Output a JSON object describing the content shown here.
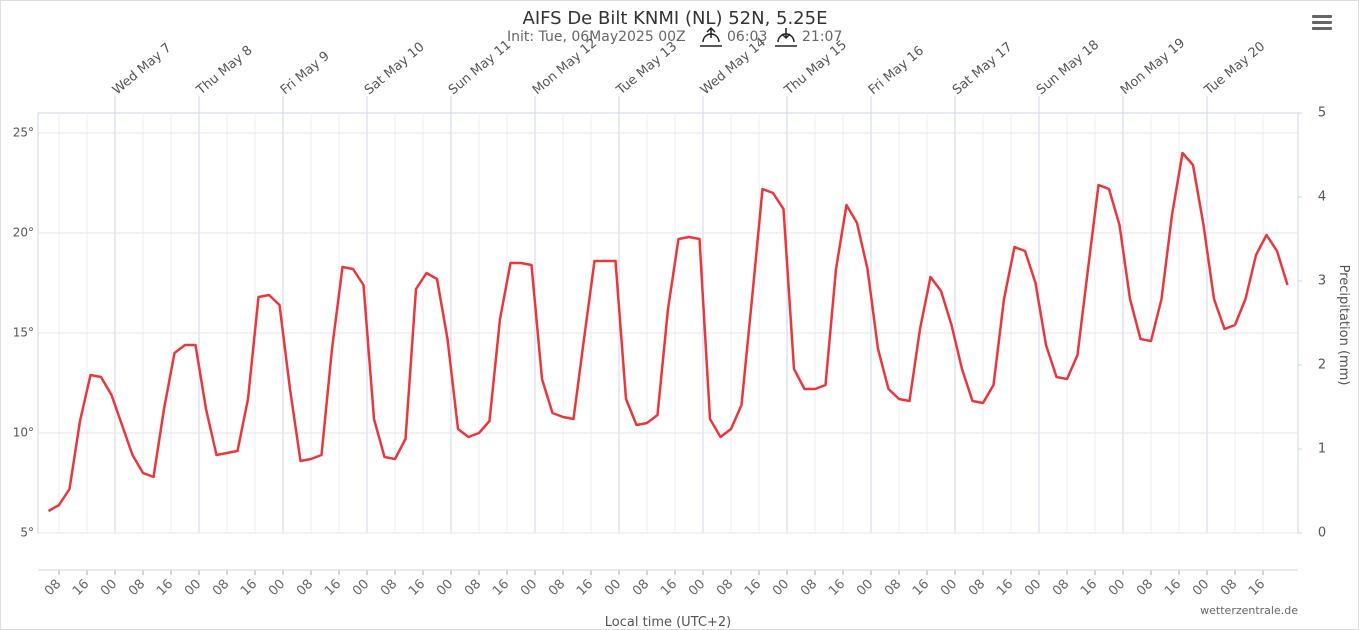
{
  "chart_data": {
    "type": "line",
    "title": "AIFS De Bilt KNMI (NL) 52N, 5.25E",
    "subtitle": "Init: Tue, 06May2025 00Z",
    "sunrise": "06:03",
    "sunset": "21:07",
    "y2_label": "Precipitation (mm)",
    "x_label": "Local time (UTC+2)",
    "credit": "wetterzentrale.de",
    "xlim": [
      "2025-05-06 02:00",
      "2025-05-21 02:00"
    ],
    "xticks": [
      {
        "value": "2025-05-07 00:00",
        "label": "Wed May 7"
      },
      {
        "value": "2025-05-08 00:00",
        "label": "Thu May 8"
      },
      {
        "value": "2025-05-09 00:00",
        "label": "Fri May 9"
      },
      {
        "value": "2025-05-10 00:00",
        "label": "Sat May 10"
      },
      {
        "value": "2025-05-11 00:00",
        "label": "Sun May 11"
      },
      {
        "value": "2025-05-12 00:00",
        "label": "Mon May 12"
      },
      {
        "value": "2025-05-13 00:00",
        "label": "Tue May 13"
      },
      {
        "value": "2025-05-14 00:00",
        "label": "Wed May 14"
      },
      {
        "value": "2025-05-15 00:00",
        "label": "Thu May 15"
      },
      {
        "value": "2025-05-16 00:00",
        "label": "Fri May 16"
      },
      {
        "value": "2025-05-17 00:00",
        "label": "Sat May 17"
      },
      {
        "value": "2025-05-18 00:00",
        "label": "Sun May 18"
      },
      {
        "value": "2025-05-19 00:00",
        "label": "Mon May 19"
      },
      {
        "value": "2025-05-20 00:00",
        "label": "Tue May 20"
      }
    ],
    "hour_ticks": [
      {
        "value": "2025-05-06 08:00",
        "label": "08"
      },
      {
        "value": "2025-05-06 16:00",
        "label": "16"
      },
      {
        "value": "2025-05-07 00:00",
        "label": "00"
      },
      {
        "value": "2025-05-07 08:00",
        "label": "08"
      },
      {
        "value": "2025-05-07 16:00",
        "label": "16"
      },
      {
        "value": "2025-05-08 00:00",
        "label": "00"
      },
      {
        "value": "2025-05-08 08:00",
        "label": "08"
      },
      {
        "value": "2025-05-08 16:00",
        "label": "16"
      },
      {
        "value": "2025-05-09 00:00",
        "label": "00"
      },
      {
        "value": "2025-05-09 08:00",
        "label": "08"
      },
      {
        "value": "2025-05-09 16:00",
        "label": "16"
      },
      {
        "value": "2025-05-10 00:00",
        "label": "00"
      },
      {
        "value": "2025-05-10 08:00",
        "label": "08"
      },
      {
        "value": "2025-05-10 16:00",
        "label": "16"
      },
      {
        "value": "2025-05-11 00:00",
        "label": "00"
      },
      {
        "value": "2025-05-11 08:00",
        "label": "08"
      },
      {
        "value": "2025-05-11 16:00",
        "label": "16"
      },
      {
        "value": "2025-05-12 00:00",
        "label": "00"
      },
      {
        "value": "2025-05-12 08:00",
        "label": "08"
      },
      {
        "value": "2025-05-12 16:00",
        "label": "16"
      },
      {
        "value": "2025-05-13 00:00",
        "label": "00"
      },
      {
        "value": "2025-05-13 08:00",
        "label": "08"
      },
      {
        "value": "2025-05-13 16:00",
        "label": "16"
      },
      {
        "value": "2025-05-14 00:00",
        "label": "00"
      },
      {
        "value": "2025-05-14 08:00",
        "label": "08"
      },
      {
        "value": "2025-05-14 16:00",
        "label": "16"
      },
      {
        "value": "2025-05-15 00:00",
        "label": "00"
      },
      {
        "value": "2025-05-15 08:00",
        "label": "08"
      },
      {
        "value": "2025-05-15 16:00",
        "label": "16"
      },
      {
        "value": "2025-05-16 00:00",
        "label": "00"
      },
      {
        "value": "2025-05-16 08:00",
        "label": "08"
      },
      {
        "value": "2025-05-16 16:00",
        "label": "16"
      },
      {
        "value": "2025-05-17 00:00",
        "label": "00"
      },
      {
        "value": "2025-05-17 08:00",
        "label": "08"
      },
      {
        "value": "2025-05-17 16:00",
        "label": "16"
      },
      {
        "value": "2025-05-18 00:00",
        "label": "00"
      },
      {
        "value": "2025-05-18 08:00",
        "label": "08"
      },
      {
        "value": "2025-05-18 16:00",
        "label": "16"
      },
      {
        "value": "2025-05-19 00:00",
        "label": "00"
      },
      {
        "value": "2025-05-19 08:00",
        "label": "08"
      },
      {
        "value": "2025-05-19 16:00",
        "label": "16"
      },
      {
        "value": "2025-05-20 00:00",
        "label": "00"
      },
      {
        "value": "2025-05-20 08:00",
        "label": "08"
      },
      {
        "value": "2025-05-20 16:00",
        "label": "16"
      }
    ],
    "ylim": [
      5,
      26
    ],
    "yticks": [
      {
        "value": 5,
        "label": "5°"
      },
      {
        "value": 10,
        "label": "10°"
      },
      {
        "value": 15,
        "label": "15°"
      },
      {
        "value": 20,
        "label": "20°"
      },
      {
        "value": 25,
        "label": "25°"
      }
    ],
    "y2lim": [
      0,
      5
    ],
    "y2ticks": [
      0,
      1,
      2,
      3,
      4,
      5
    ],
    "grid": true,
    "x": [
      "2025-05-06 05:00",
      "2025-05-06 08:00",
      "2025-05-06 11:00",
      "2025-05-06 14:00",
      "2025-05-06 17:00",
      "2025-05-06 20:00",
      "2025-05-06 23:00",
      "2025-05-07 02:00",
      "2025-05-07 05:00",
      "2025-05-07 08:00",
      "2025-05-07 11:00",
      "2025-05-07 14:00",
      "2025-05-07 17:00",
      "2025-05-07 20:00",
      "2025-05-07 23:00",
      "2025-05-08 02:00",
      "2025-05-08 05:00",
      "2025-05-08 08:00",
      "2025-05-08 11:00",
      "2025-05-08 14:00",
      "2025-05-08 17:00",
      "2025-05-08 20:00",
      "2025-05-08 23:00",
      "2025-05-09 02:00",
      "2025-05-09 05:00",
      "2025-05-09 08:00",
      "2025-05-09 11:00",
      "2025-05-09 14:00",
      "2025-05-09 17:00",
      "2025-05-09 20:00",
      "2025-05-09 23:00",
      "2025-05-10 02:00",
      "2025-05-10 05:00",
      "2025-05-10 08:00",
      "2025-05-10 11:00",
      "2025-05-10 14:00",
      "2025-05-10 17:00",
      "2025-05-10 20:00",
      "2025-05-10 23:00",
      "2025-05-11 02:00",
      "2025-05-11 05:00",
      "2025-05-11 08:00",
      "2025-05-11 11:00",
      "2025-05-11 14:00",
      "2025-05-11 17:00",
      "2025-05-11 20:00",
      "2025-05-11 23:00",
      "2025-05-12 02:00",
      "2025-05-12 05:00",
      "2025-05-12 08:00",
      "2025-05-12 11:00",
      "2025-05-12 14:00",
      "2025-05-12 17:00",
      "2025-05-12 20:00",
      "2025-05-12 23:00",
      "2025-05-13 02:00",
      "2025-05-13 05:00",
      "2025-05-13 08:00",
      "2025-05-13 11:00",
      "2025-05-13 14:00",
      "2025-05-13 17:00",
      "2025-05-13 20:00",
      "2025-05-13 23:00",
      "2025-05-14 02:00",
      "2025-05-14 05:00",
      "2025-05-14 08:00",
      "2025-05-14 11:00",
      "2025-05-14 14:00",
      "2025-05-14 17:00",
      "2025-05-14 20:00",
      "2025-05-14 23:00",
      "2025-05-15 02:00",
      "2025-05-15 05:00",
      "2025-05-15 08:00",
      "2025-05-15 11:00",
      "2025-05-15 14:00",
      "2025-05-15 17:00",
      "2025-05-15 20:00",
      "2025-05-15 23:00",
      "2025-05-16 02:00",
      "2025-05-16 05:00",
      "2025-05-16 08:00",
      "2025-05-16 11:00",
      "2025-05-16 14:00",
      "2025-05-16 17:00",
      "2025-05-16 20:00",
      "2025-05-16 23:00",
      "2025-05-17 02:00",
      "2025-05-17 05:00",
      "2025-05-17 08:00",
      "2025-05-17 11:00",
      "2025-05-17 14:00",
      "2025-05-17 17:00",
      "2025-05-17 20:00",
      "2025-05-17 23:00",
      "2025-05-18 02:00",
      "2025-05-18 05:00",
      "2025-05-18 08:00",
      "2025-05-18 11:00",
      "2025-05-18 14:00",
      "2025-05-18 17:00",
      "2025-05-18 20:00",
      "2025-05-18 23:00",
      "2025-05-19 02:00",
      "2025-05-19 05:00",
      "2025-05-19 08:00",
      "2025-05-19 11:00",
      "2025-05-19 14:00",
      "2025-05-19 17:00",
      "2025-05-19 20:00",
      "2025-05-19 23:00",
      "2025-05-20 02:00",
      "2025-05-20 05:00",
      "2025-05-20 08:00",
      "2025-05-20 11:00",
      "2025-05-20 14:00",
      "2025-05-20 17:00",
      "2025-05-20 20:00",
      "2025-05-20 23:00"
    ],
    "series": [
      {
        "color": "#e8383d",
        "values": [
          6.1,
          6.4,
          7.2,
          10.6,
          12.9,
          12.8,
          11.9,
          10.4,
          8.9,
          8.0,
          7.8,
          11.2,
          14.0,
          14.4,
          14.4,
          11.2,
          8.9,
          9.0,
          9.1,
          11.7,
          16.8,
          16.9,
          16.4,
          12.2,
          8.6,
          8.7,
          8.9,
          14.2,
          18.3,
          18.2,
          17.4,
          10.7,
          8.8,
          8.7,
          9.7,
          17.2,
          18.0,
          17.7,
          14.7,
          10.2,
          9.8,
          10.0,
          10.6,
          15.7,
          18.5,
          18.5,
          18.4,
          12.7,
          11.0,
          10.8,
          10.7,
          14.7,
          18.6,
          18.6,
          18.6,
          11.7,
          10.4,
          10.5,
          10.9,
          16.2,
          19.7,
          19.8,
          19.7,
          10.7,
          9.8,
          10.2,
          11.4,
          16.7,
          22.2,
          22.0,
          21.2,
          13.2,
          12.2,
          12.2,
          12.4,
          18.2,
          21.4,
          20.5,
          18.2,
          14.2,
          12.2,
          11.7,
          11.6,
          15.2,
          17.8,
          17.1,
          15.4,
          13.2,
          11.6,
          11.5,
          12.4,
          16.7,
          19.3,
          19.1,
          17.5,
          14.4,
          12.8,
          12.7,
          13.9,
          18.2,
          22.4,
          22.2,
          20.4,
          16.7,
          14.7,
          14.6,
          16.7,
          20.9,
          24.0,
          23.4,
          20.4,
          16.7,
          15.2,
          15.4,
          16.7,
          18.9,
          19.9,
          19.1,
          17.4
        ]
      }
    ]
  }
}
